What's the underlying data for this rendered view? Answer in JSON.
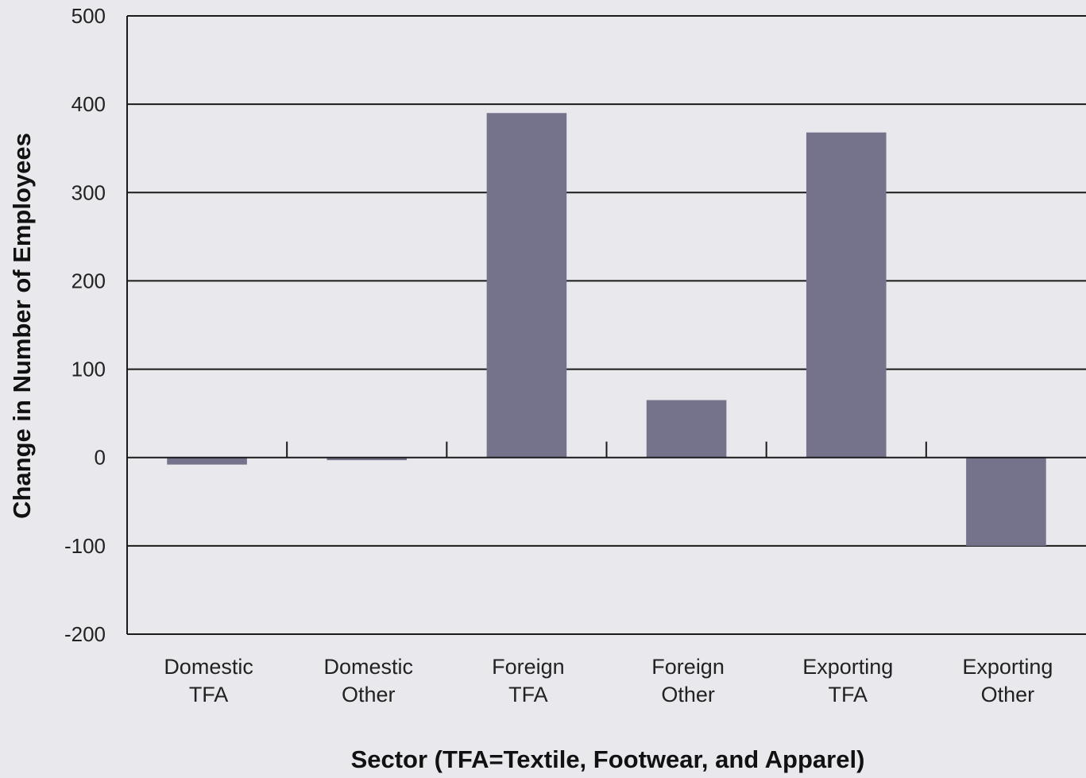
{
  "chart_data": {
    "type": "bar",
    "title": "",
    "xlabel": "Sector (TFA=Textile, Footwear, and Apparel)",
    "ylabel": "Change in Number of Employees",
    "ylim": [
      -200,
      500
    ],
    "yticks": [
      -200,
      -100,
      0,
      100,
      200,
      300,
      400,
      500
    ],
    "grid": true,
    "categories": [
      [
        "Domestic",
        "TFA"
      ],
      [
        "Domestic",
        "Other"
      ],
      [
        "Foreign",
        "TFA"
      ],
      [
        "Foreign",
        "Other"
      ],
      [
        "Exporting",
        "TFA"
      ],
      [
        "Exporting",
        "Other"
      ]
    ],
    "values": [
      -8,
      -3,
      390,
      65,
      368,
      -100
    ],
    "bar_color": "#75728c"
  }
}
